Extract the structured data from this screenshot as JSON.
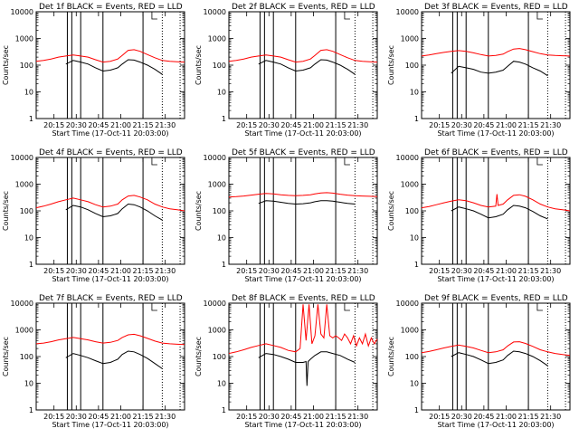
{
  "panel_labels": [
    "Det 1f",
    "Det 2f",
    "Det 3f",
    "Det 4f",
    "Det 5f",
    "Det 6f",
    "Det 7f",
    "Det 8f",
    "Det 9f"
  ],
  "title_suffix": "BLACK = Events, RED = LLD",
  "ylabel": "Counts/sec",
  "xlabel": "Start Time (17-Oct-11 20:03:00)",
  "colors": {
    "events": "#000000",
    "lld": "#ff0000",
    "axes": "#000000",
    "background": "#ffffff"
  },
  "chart_data": {
    "type": "line",
    "layout": "3x3 grid",
    "y_scale": "log",
    "ylim": [
      1,
      10000
    ],
    "xlim_minutes": [
      0,
      100
    ],
    "x_tick_labels": [
      "20:15",
      "20:30",
      "20:45",
      "21:00",
      "21:15",
      "21:30"
    ],
    "x_tick_minutes": [
      12,
      27,
      42,
      57,
      72,
      87
    ],
    "y_tick_labels": [
      "1",
      "10",
      "100",
      "1000",
      "10000"
    ],
    "y_tick_values": [
      1,
      10,
      100,
      1000,
      10000
    ],
    "solid_vertical_lines_minutes": [
      21,
      24,
      30,
      45,
      72
    ],
    "dotted_vertical_lines_minutes": [
      85,
      97
    ],
    "flag_marker_minute": 78,
    "events_range_minutes": [
      20,
      85
    ],
    "panels": [
      {
        "name": "Det 1f",
        "series": [
          {
            "name": "BLACK = Events",
            "x": [
              20,
              25,
              30,
              35,
              40,
              45,
              50,
              55,
              58,
              62,
              66,
              70,
              75,
              80,
              85
            ],
            "y": [
              110,
              150,
              130,
              110,
              80,
              60,
              65,
              80,
              110,
              160,
              155,
              130,
              100,
              70,
              45
            ]
          },
          {
            "name": "RED = LLD",
            "x": [
              0,
              5,
              10,
              15,
              20,
              25,
              30,
              35,
              40,
              45,
              50,
              55,
              58,
              62,
              66,
              70,
              75,
              80,
              85,
              90,
              95,
              100
            ],
            "y": [
              140,
              150,
              170,
              200,
              220,
              240,
              220,
              200,
              160,
              130,
              140,
              170,
              230,
              360,
              380,
              330,
              250,
              190,
              150,
              140,
              135,
              130
            ]
          }
        ]
      },
      {
        "name": "Det 2f",
        "series": [
          {
            "name": "BLACK = Events",
            "x": [
              20,
              25,
              30,
              35,
              40,
              45,
              50,
              55,
              58,
              62,
              66,
              70,
              75,
              80,
              85
            ],
            "y": [
              110,
              150,
              130,
              110,
              80,
              60,
              65,
              80,
              110,
              160,
              155,
              130,
              100,
              70,
              45
            ]
          },
          {
            "name": "RED = LLD",
            "x": [
              0,
              5,
              10,
              15,
              20,
              25,
              30,
              35,
              40,
              45,
              50,
              55,
              58,
              62,
              66,
              70,
              75,
              80,
              85,
              90,
              95,
              100
            ],
            "y": [
              140,
              150,
              170,
              200,
              220,
              240,
              220,
              200,
              160,
              130,
              140,
              170,
              230,
              360,
              380,
              330,
              250,
              190,
              150,
              140,
              135,
              130
            ]
          }
        ]
      },
      {
        "name": "Det 3f",
        "series": [
          {
            "name": "BLACK = Events",
            "x": [
              20,
              25,
              30,
              35,
              40,
              45,
              50,
              55,
              58,
              62,
              66,
              70,
              75,
              80,
              85
            ],
            "y": [
              50,
              90,
              80,
              70,
              55,
              50,
              55,
              65,
              90,
              140,
              130,
              110,
              80,
              60,
              40
            ]
          },
          {
            "name": "RED = LLD",
            "x": [
              0,
              5,
              10,
              15,
              20,
              25,
              30,
              35,
              40,
              45,
              50,
              55,
              58,
              62,
              66,
              70,
              75,
              80,
              85,
              90,
              95,
              100
            ],
            "y": [
              220,
              240,
              270,
              300,
              330,
              350,
              330,
              290,
              250,
              220,
              230,
              260,
              320,
              400,
              420,
              380,
              320,
              270,
              240,
              230,
              225,
              220
            ]
          }
        ]
      },
      {
        "name": "Det 4f",
        "series": [
          {
            "name": "BLACK = Events",
            "x": [
              20,
              25,
              30,
              35,
              40,
              45,
              50,
              55,
              58,
              62,
              66,
              70,
              75,
              80,
              85
            ],
            "y": [
              110,
              160,
              140,
              110,
              80,
              60,
              65,
              80,
              120,
              180,
              170,
              140,
              100,
              65,
              45
            ]
          },
          {
            "name": "RED = LLD",
            "x": [
              0,
              5,
              10,
              15,
              20,
              25,
              30,
              35,
              40,
              45,
              50,
              55,
              58,
              62,
              66,
              70,
              75,
              80,
              85,
              90,
              95,
              100
            ],
            "y": [
              130,
              150,
              180,
              220,
              260,
              300,
              260,
              220,
              170,
              140,
              150,
              180,
              260,
              360,
              380,
              330,
              260,
              180,
              140,
              120,
              110,
              100
            ]
          }
        ]
      },
      {
        "name": "Det 5f",
        "series": [
          {
            "name": "BLACK = Events",
            "x": [
              20,
              25,
              30,
              35,
              40,
              45,
              50,
              55,
              58,
              62,
              66,
              70,
              75,
              80,
              85
            ],
            "y": [
              190,
              240,
              230,
              210,
              190,
              180,
              185,
              200,
              220,
              240,
              240,
              230,
              210,
              190,
              180
            ]
          },
          {
            "name": "RED = LLD",
            "x": [
              0,
              5,
              10,
              15,
              20,
              25,
              30,
              35,
              40,
              45,
              50,
              55,
              58,
              62,
              66,
              70,
              75,
              80,
              85,
              90,
              95,
              100
            ],
            "y": [
              330,
              340,
              360,
              390,
              420,
              450,
              430,
              400,
              380,
              370,
              380,
              400,
              430,
              470,
              480,
              460,
              420,
              390,
              370,
              360,
              350,
              340
            ]
          }
        ]
      },
      {
        "name": "Det 6f",
        "series": [
          {
            "name": "BLACK = Events",
            "x": [
              20,
              25,
              30,
              35,
              40,
              45,
              50,
              55,
              58,
              62,
              66,
              70,
              75,
              80,
              85
            ],
            "y": [
              100,
              140,
              120,
              100,
              75,
              55,
              60,
              75,
              110,
              160,
              150,
              130,
              95,
              65,
              50
            ]
          },
          {
            "name": "RED = LLD",
            "x": [
              0,
              5,
              10,
              15,
              20,
              25,
              30,
              35,
              40,
              45,
              50,
              50.8,
              51.6,
              55,
              58,
              62,
              66,
              70,
              75,
              80,
              85,
              90,
              95,
              100
            ],
            "y": [
              130,
              145,
              170,
              200,
              230,
              260,
              240,
              200,
              160,
              140,
              150,
              420,
              160,
              180,
              260,
              380,
              400,
              350,
              260,
              180,
              140,
              120,
              110,
              100
            ]
          }
        ]
      },
      {
        "name": "Det 7f",
        "series": [
          {
            "name": "BLACK = Events",
            "x": [
              20,
              25,
              30,
              35,
              40,
              45,
              50,
              55,
              58,
              62,
              66,
              70,
              75,
              80,
              85
            ],
            "y": [
              90,
              130,
              110,
              90,
              70,
              55,
              60,
              80,
              120,
              160,
              150,
              120,
              85,
              55,
              35
            ]
          },
          {
            "name": "RED = LLD",
            "x": [
              0,
              5,
              10,
              15,
              20,
              25,
              30,
              35,
              40,
              45,
              50,
              55,
              58,
              62,
              66,
              70,
              75,
              80,
              85,
              90,
              95,
              100
            ],
            "y": [
              300,
              320,
              360,
              420,
              470,
              520,
              470,
              420,
              360,
              320,
              340,
              400,
              520,
              650,
              680,
              600,
              480,
              380,
              320,
              300,
              290,
              280
            ]
          }
        ]
      },
      {
        "name": "Det 8f",
        "series": [
          {
            "name": "BLACK = Events",
            "x": [
              20,
              25,
              30,
              35,
              40,
              45,
              50,
              52,
              52.6,
              53.4,
              55,
              58,
              62,
              66,
              70,
              75,
              80,
              85
            ],
            "y": [
              90,
              130,
              120,
              100,
              80,
              60,
              60,
              65,
              8,
              65,
              80,
              110,
              150,
              150,
              130,
              110,
              80,
              60
            ]
          },
          {
            "name": "RED = LLD",
            "x": [
              0,
              5,
              10,
              15,
              20,
              25,
              30,
              35,
              40,
              45,
              48,
              50,
              52,
              54,
              56,
              58,
              60,
              62,
              64,
              66,
              68,
              70,
              72,
              74,
              76,
              78,
              80,
              82,
              84,
              86,
              88,
              90,
              92,
              94,
              96,
              98,
              100
            ],
            "y": [
              130,
              150,
              180,
              220,
              260,
              300,
              260,
              220,
              170,
              150,
              200,
              9000,
              400,
              9000,
              300,
              600,
              9000,
              700,
              500,
              9000,
              600,
              500,
              600,
              500,
              400,
              700,
              500,
              300,
              600,
              250,
              500,
              300,
              700,
              250,
              500,
              300,
              450
            ]
          }
        ]
      },
      {
        "name": "Det 9f",
        "series": [
          {
            "name": "BLACK = Events",
            "x": [
              20,
              25,
              30,
              35,
              40,
              45,
              50,
              55,
              58,
              62,
              66,
              70,
              75,
              80,
              85
            ],
            "y": [
              100,
              140,
              120,
              100,
              75,
              55,
              60,
              75,
              110,
              160,
              150,
              130,
              100,
              70,
              45
            ]
          },
          {
            "name": "RED = LLD",
            "x": [
              0,
              5,
              10,
              15,
              20,
              25,
              30,
              35,
              40,
              45,
              50,
              55,
              58,
              62,
              66,
              70,
              75,
              80,
              85,
              90,
              95,
              100
            ],
            "y": [
              140,
              155,
              180,
              210,
              240,
              270,
              240,
              210,
              170,
              140,
              150,
              180,
              250,
              350,
              360,
              310,
              240,
              180,
              150,
              130,
              120,
              110
            ]
          }
        ]
      }
    ]
  }
}
